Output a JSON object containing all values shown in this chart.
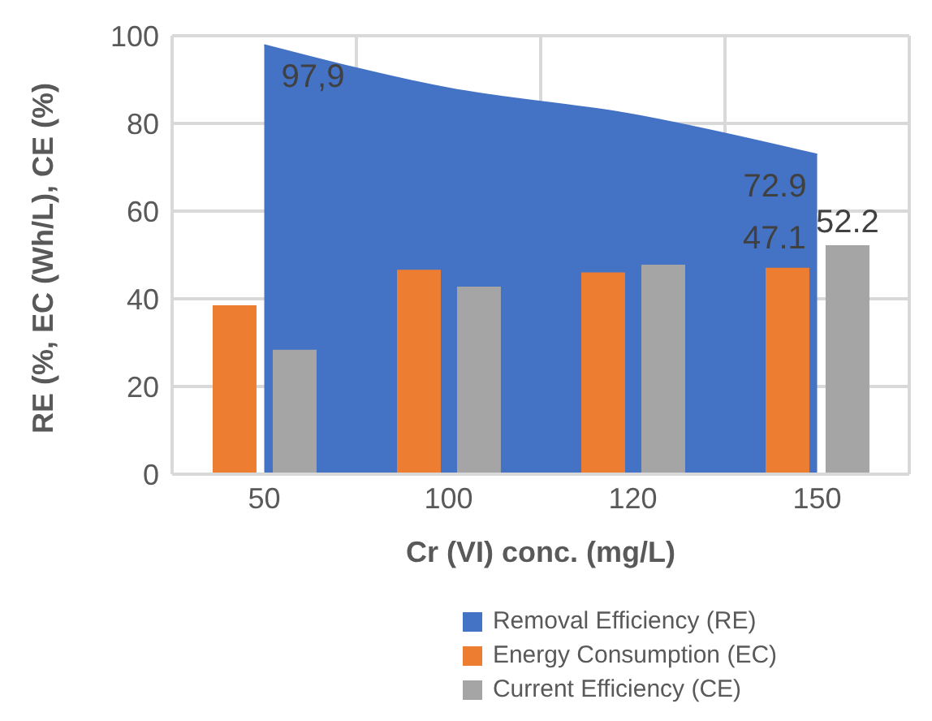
{
  "chart_data": {
    "type": "bar",
    "xlabel": "Cr (VI) conc. (mg/L)",
    "ylabel": "RE (%, EC (Wh/L), CE (%)",
    "categories": [
      "50",
      "100",
      "120",
      "150"
    ],
    "series": [
      {
        "name": "Removal Efficiency (RE)",
        "type": "area",
        "color": "#4472c4",
        "values": [
          97.9,
          88,
          82,
          72.9
        ],
        "value_labels": [
          "97,9",
          null,
          null,
          "72.9"
        ]
      },
      {
        "name": "Energy Consumption (EC)",
        "color": "#ed7d31",
        "values": [
          38.5,
          46.6,
          46,
          47.1
        ],
        "value_labels": [
          null,
          null,
          null,
          "47.1"
        ]
      },
      {
        "name": "Current Efficiency (CE)",
        "color": "#a5a5a5",
        "values": [
          28.4,
          42.8,
          47.8,
          52.2
        ],
        "value_labels": [
          null,
          null,
          null,
          "52.2"
        ]
      }
    ],
    "ylim": [
      0,
      100
    ],
    "yticks": [
      0,
      20,
      40,
      60,
      80,
      100
    ],
    "grid": true,
    "legend": "bottom"
  }
}
